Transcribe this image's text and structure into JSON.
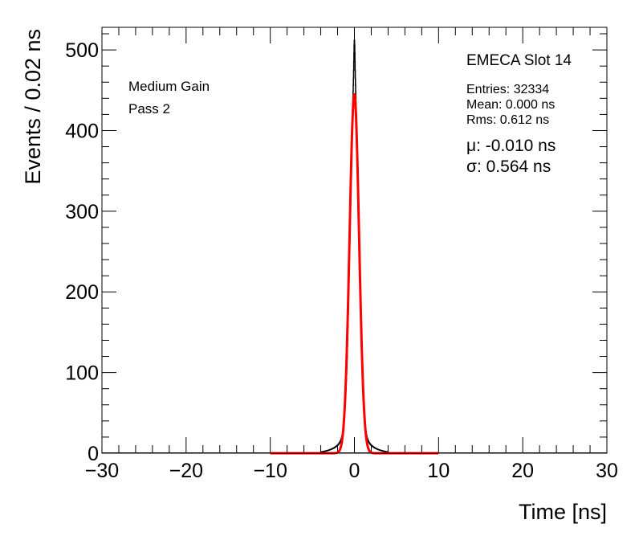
{
  "chart_data": {
    "type": "histogram",
    "title": "EMECA Slot 14",
    "xlabel": "Time [ns]",
    "ylabel": "Events / 0.02 ns",
    "xlim": [
      -30,
      30
    ],
    "ylim": [
      0,
      528
    ],
    "x_ticks": [
      -30,
      -20,
      -10,
      0,
      10,
      20,
      30
    ],
    "x_tick_labels": [
      "−30",
      "−20",
      "−10",
      "0",
      "10",
      "20",
      "30"
    ],
    "y_ticks": [
      0,
      100,
      200,
      300,
      400,
      500
    ],
    "y_tick_labels": [
      "0",
      "100",
      "200",
      "300",
      "400",
      "500"
    ],
    "labels": {
      "gain": "Medium Gain",
      "pass": "Pass 2"
    },
    "stats": {
      "entries": "Entries: 32334",
      "mean": "Mean: 0.000 ns",
      "rms": "Rms: 0.612 ns"
    },
    "fit_results": {
      "mu": "μ: -0.010 ns",
      "sigma": "σ: 0.564 ns"
    },
    "series": [
      {
        "name": "data",
        "color": "#000000",
        "bin_width": 0.02,
        "range": [
          -4,
          4
        ],
        "peak": 503,
        "peak_x": 0.0,
        "core_sigma": 0.5,
        "tail_scale": 1.1
      },
      {
        "name": "gaussian fit",
        "color": "#ff0000",
        "range": [
          -10,
          10
        ],
        "amplitude": 445,
        "mean": -0.01,
        "sigma": 0.564
      }
    ]
  }
}
